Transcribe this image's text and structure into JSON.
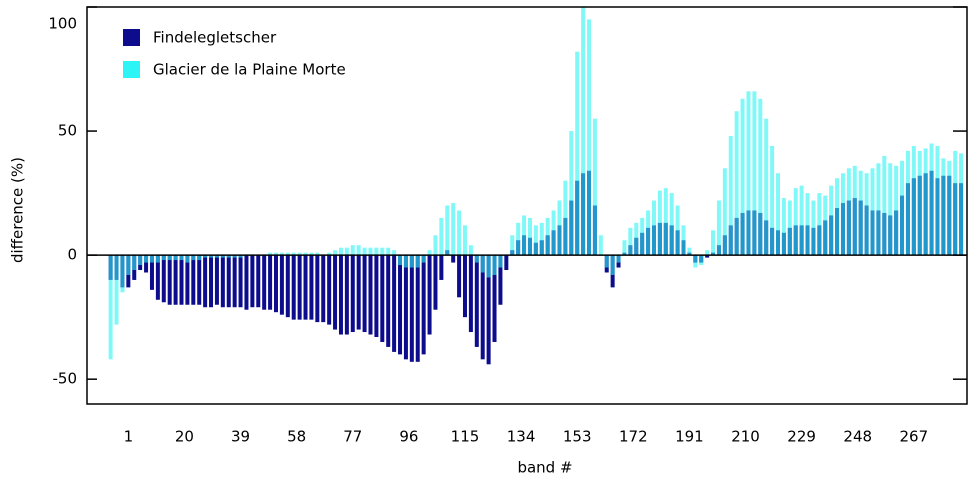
{
  "chart_data": {
    "type": "bar",
    "x_label": "band #",
    "y_label": "difference (%)",
    "x": [
      -5,
      -3,
      -1,
      1,
      3,
      5,
      7,
      9,
      11,
      13,
      15,
      17,
      19,
      21,
      23,
      25,
      27,
      29,
      31,
      33,
      35,
      37,
      39,
      41,
      43,
      45,
      47,
      49,
      51,
      53,
      55,
      57,
      59,
      61,
      63,
      65,
      67,
      69,
      71,
      73,
      75,
      77,
      79,
      81,
      83,
      85,
      87,
      89,
      91,
      93,
      95,
      97,
      99,
      101,
      103,
      105,
      107,
      109,
      111,
      113,
      115,
      117,
      119,
      121,
      123,
      125,
      127,
      129,
      131,
      133,
      135,
      137,
      139,
      141,
      143,
      145,
      147,
      149,
      151,
      153,
      155,
      157,
      159,
      161,
      163,
      165,
      167,
      169,
      171,
      173,
      175,
      177,
      179,
      181,
      183,
      185,
      187,
      189,
      191,
      193,
      195,
      197,
      199,
      201,
      203,
      205,
      207,
      209,
      211,
      213,
      215,
      217,
      219,
      221,
      223,
      225,
      227,
      229,
      231,
      233,
      235,
      237,
      239,
      241,
      243,
      245,
      247,
      249,
      251,
      253,
      255,
      257,
      259,
      261,
      263,
      265,
      267,
      269,
      271,
      273,
      275,
      277,
      279,
      281,
      283
    ],
    "series": [
      {
        "name": "Findelegletscher",
        "color": "#0c0c8c",
        "values": [
          -10,
          -10,
          -13,
          -13,
          -10,
          -6,
          -7,
          -14,
          -18,
          -19,
          -20,
          -20,
          -20,
          -20,
          -20,
          -20,
          -21,
          -21,
          -20,
          -21,
          -21,
          -21,
          -21,
          -22,
          -21,
          -21,
          -22,
          -22,
          -23,
          -24,
          -25,
          -26,
          -26,
          -26,
          -26,
          -27,
          -27,
          -28,
          -30,
          -32,
          -32,
          -31,
          -30,
          -31,
          -32,
          -33,
          -35,
          -37,
          -39,
          -40,
          -42,
          -43,
          -43,
          -40,
          -32,
          -22,
          -10,
          2,
          -3,
          -17,
          -25,
          -31,
          -37,
          -42,
          -44,
          -35,
          -20,
          -6,
          2,
          6,
          8,
          7,
          5,
          6,
          8,
          10,
          12,
          15,
          22,
          30,
          33,
          34,
          20,
          0,
          -7,
          -13,
          -5,
          1,
          4,
          7,
          9,
          11,
          12,
          13,
          13,
          12,
          10,
          6,
          1,
          -3,
          -3,
          -1,
          1,
          4,
          8,
          12,
          15,
          17,
          18,
          18,
          17,
          14,
          11,
          10,
          9,
          11,
          12,
          12,
          12,
          11,
          12,
          14,
          16,
          19,
          21,
          22,
          23,
          22,
          20,
          18,
          18,
          17,
          16,
          18,
          24,
          29,
          31,
          32,
          33,
          34,
          31,
          32,
          32,
          29,
          29
        ]
      },
      {
        "name": "Glacier de la Plaine Morte",
        "color": "#2ef5f5",
        "values": [
          -42,
          -28,
          -15,
          -8,
          -6,
          -4,
          -3,
          -3,
          -3,
          -2,
          -2,
          -2,
          -2,
          -3,
          -2,
          -2,
          -1,
          -1,
          -1,
          -1,
          -1,
          -1,
          -1,
          0,
          0,
          0,
          0,
          1,
          1,
          1,
          1,
          1,
          1,
          1,
          1,
          1,
          0,
          1,
          2,
          3,
          3,
          4,
          4,
          3,
          3,
          3,
          3,
          3,
          2,
          -4,
          -5,
          -5,
          -5,
          -3,
          2,
          8,
          15,
          20,
          21,
          18,
          12,
          4,
          -3,
          -7,
          -9,
          -8,
          -5,
          0,
          8,
          13,
          16,
          15,
          12,
          13,
          15,
          18,
          22,
          30,
          50,
          82,
          100,
          95,
          55,
          8,
          -5,
          -8,
          -3,
          6,
          11,
          13,
          15,
          18,
          22,
          26,
          27,
          25,
          20,
          12,
          3,
          -5,
          -4,
          2,
          10,
          22,
          35,
          48,
          58,
          63,
          66,
          66,
          63,
          55,
          44,
          33,
          23,
          22,
          27,
          28,
          25,
          22,
          25,
          24,
          28,
          31,
          33,
          35,
          36,
          34,
          33,
          35,
          37,
          40,
          37,
          36,
          38,
          42,
          44,
          42,
          43,
          45,
          44,
          39,
          38,
          42,
          41
        ]
      }
    ],
    "xlim": [
      -13,
      285
    ],
    "xticks": [
      1,
      20,
      39,
      58,
      77,
      96,
      115,
      134,
      153,
      172,
      191,
      210,
      229,
      248,
      267
    ],
    "ylim": [
      -60,
      100
    ],
    "yticks": [
      -50,
      0,
      50,
      100
    ],
    "legend": "upper left"
  }
}
